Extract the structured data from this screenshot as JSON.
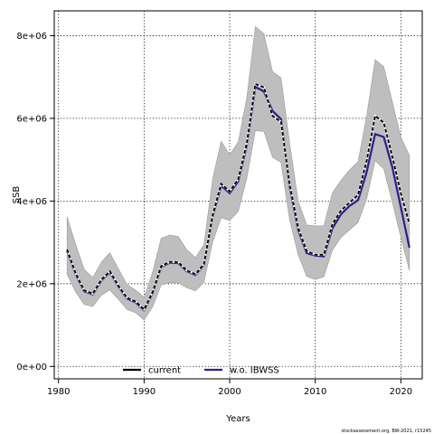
{
  "chart_data": {
    "type": "line",
    "title": "",
    "xlabel": "Years",
    "ylabel": "SSB",
    "xlim": [
      1979.5,
      2022.5
    ],
    "ylim": [
      -300000,
      8600000
    ],
    "x_ticks": [
      1980,
      1990,
      2000,
      2010,
      2020
    ],
    "x_tick_labels": [
      "1980",
      "1990",
      "2000",
      "2010",
      "2020"
    ],
    "y_ticks": [
      0,
      2000000,
      4000000,
      6000000,
      8000000
    ],
    "y_tick_labels": [
      "0e+00",
      "2e+06",
      "4e+06",
      "6e+06",
      "8e+06"
    ],
    "grid": true,
    "legend_position": "bottom",
    "footer": "stockassessment.org, BW-2021, r15245",
    "x": [
      1981,
      1982,
      1983,
      1984,
      1985,
      1986,
      1987,
      1988,
      1989,
      1990,
      1991,
      1992,
      1993,
      1994,
      1995,
      1996,
      1997,
      1998,
      1999,
      2000,
      2001,
      2002,
      2003,
      2004,
      2005,
      2006,
      2007,
      2008,
      2009,
      2010,
      2011,
      2012,
      2013,
      2014,
      2015,
      2016,
      2017,
      2018,
      2019,
      2020,
      2021
    ],
    "band": {
      "color": "#bebebe",
      "upper": [
        3620000,
        2950000,
        2350000,
        2150000,
        2520000,
        2750000,
        2360000,
        1980000,
        1850000,
        1670000,
        2280000,
        3100000,
        3180000,
        3140000,
        2820000,
        2630000,
        2950000,
        4520000,
        5450000,
        5120000,
        5430000,
        6500000,
        8220000,
        8050000,
        7130000,
        6980000,
        5400000,
        4000000,
        3420000,
        3400000,
        3400000,
        4200000,
        4500000,
        4750000,
        4950000,
        6050000,
        7420000,
        7250000,
        6400000,
        5550000,
        5100000
      ],
      "lower": [
        2230000,
        1800000,
        1500000,
        1450000,
        1720000,
        1850000,
        1620000,
        1380000,
        1300000,
        1120000,
        1440000,
        1970000,
        2030000,
        2020000,
        1900000,
        1830000,
        2040000,
        3000000,
        3600000,
        3530000,
        3750000,
        4550000,
        5700000,
        5680000,
        5060000,
        4930000,
        3550000,
        2700000,
        2180000,
        2100000,
        2170000,
        2810000,
        3120000,
        3300000,
        3480000,
        4050000,
        4980000,
        4780000,
        3970000,
        3130000,
        2320000
      ]
    },
    "series": [
      {
        "name": "current",
        "color": "#000000",
        "dash": "4 2",
        "values": [
          2830000,
          2250000,
          1840000,
          1760000,
          2100000,
          2300000,
          1950000,
          1660000,
          1570000,
          1380000,
          1800000,
          2430000,
          2530000,
          2520000,
          2320000,
          2230000,
          2480000,
          3650000,
          4420000,
          4230000,
          4530000,
          5400000,
          6830000,
          6750000,
          6060000,
          5920000,
          4410000,
          3350000,
          2790000,
          2700000,
          2700000,
          3440000,
          3770000,
          3960000,
          4150000,
          4970000,
          6060000,
          5900000,
          5080000,
          4190000,
          3450000
        ]
      },
      {
        "name": "w.o. IBWSS",
        "color": "#28228a",
        "dash": "",
        "values": [
          2800000,
          2230000,
          1820000,
          1740000,
          2080000,
          2280000,
          1930000,
          1640000,
          1550000,
          1360000,
          1780000,
          2410000,
          2510000,
          2500000,
          2300000,
          2210000,
          2460000,
          3620000,
          4370000,
          4190000,
          4480000,
          5350000,
          6760000,
          6650000,
          6180000,
          5980000,
          4360000,
          3300000,
          2740000,
          2680000,
          2660000,
          3340000,
          3680000,
          3880000,
          4020000,
          4700000,
          5620000,
          5550000,
          4820000,
          3850000,
          2870000
        ]
      }
    ]
  }
}
